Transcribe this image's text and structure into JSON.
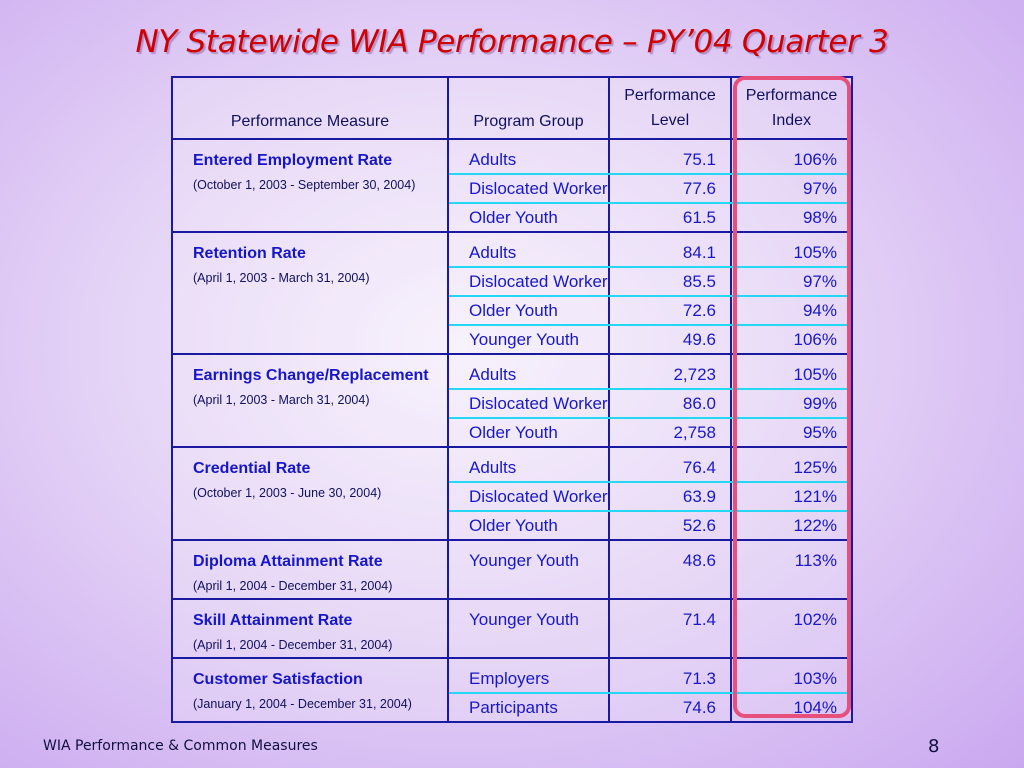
{
  "title": "NY Statewide WIA Performance – PY’04 Quarter 3",
  "table": {
    "headers": {
      "measure": "Performance Measure",
      "group": "Program Group",
      "level_l1": "Performance",
      "level_l2": "Level",
      "index_l1": "Performance",
      "index_l2": "Index"
    },
    "groups": [
      {
        "name": "Entered Employment Rate",
        "period": "(October 1, 2003 - September 30, 2004)",
        "rows": [
          {
            "program": "Adults",
            "level": "75.1",
            "index": "106%"
          },
          {
            "program": "Dislocated Worker",
            "level": "77.6",
            "index": "97%"
          },
          {
            "program": "Older Youth",
            "level": "61.5",
            "index": "98%"
          }
        ]
      },
      {
        "name": "Retention Rate",
        "period": "(April 1, 2003 - March 31, 2004)",
        "rows": [
          {
            "program": "Adults",
            "level": "84.1",
            "index": "105%"
          },
          {
            "program": "Dislocated Worker",
            "level": "85.5",
            "index": "97%"
          },
          {
            "program": "Older Youth",
            "level": "72.6",
            "index": "94%"
          },
          {
            "program": "Younger Youth",
            "level": "49.6",
            "index": "106%"
          }
        ]
      },
      {
        "name": "Earnings Change/Replacement",
        "period": "(April 1, 2003 - March 31, 2004)",
        "rows": [
          {
            "program": "Adults",
            "level": "2,723",
            "index": "105%"
          },
          {
            "program": "Dislocated Worker",
            "level": "86.0",
            "index": "99%"
          },
          {
            "program": "Older Youth",
            "level": "2,758",
            "index": "95%"
          }
        ]
      },
      {
        "name": "Credential Rate",
        "period": "(October 1, 2003 - June 30, 2004)",
        "rows": [
          {
            "program": "Adults",
            "level": "76.4",
            "index": "125%"
          },
          {
            "program": "Dislocated Worker",
            "level": "63.9",
            "index": "121%"
          },
          {
            "program": "Older Youth",
            "level": "52.6",
            "index": "122%"
          }
        ]
      },
      {
        "name": "Diploma Attainment Rate",
        "period": "(April 1, 2004 - December 31, 2004)",
        "rows": [
          {
            "program": "Younger Youth",
            "level": "48.6",
            "index": "113%"
          }
        ]
      },
      {
        "name": "Skill Attainment Rate",
        "period": "(April 1, 2004 - December 31, 2004)",
        "rows": [
          {
            "program": "Younger Youth",
            "level": "71.4",
            "index": "102%"
          }
        ]
      },
      {
        "name": "Customer Satisfaction",
        "period": "(January 1, 2004 - December 31, 2004)",
        "rows": [
          {
            "program": "Employers",
            "level": "71.3",
            "index": "103%"
          },
          {
            "program": "Participants",
            "level": "74.6",
            "index": "104%"
          }
        ]
      }
    ]
  },
  "footer": "WIA Performance & Common Measures",
  "page_number": "8",
  "colors": {
    "title": "#d10000",
    "measure_name": "#1616c8",
    "border": "#1a1aa0",
    "row_divider": "#22d8f4",
    "highlight": "#e8507c"
  }
}
